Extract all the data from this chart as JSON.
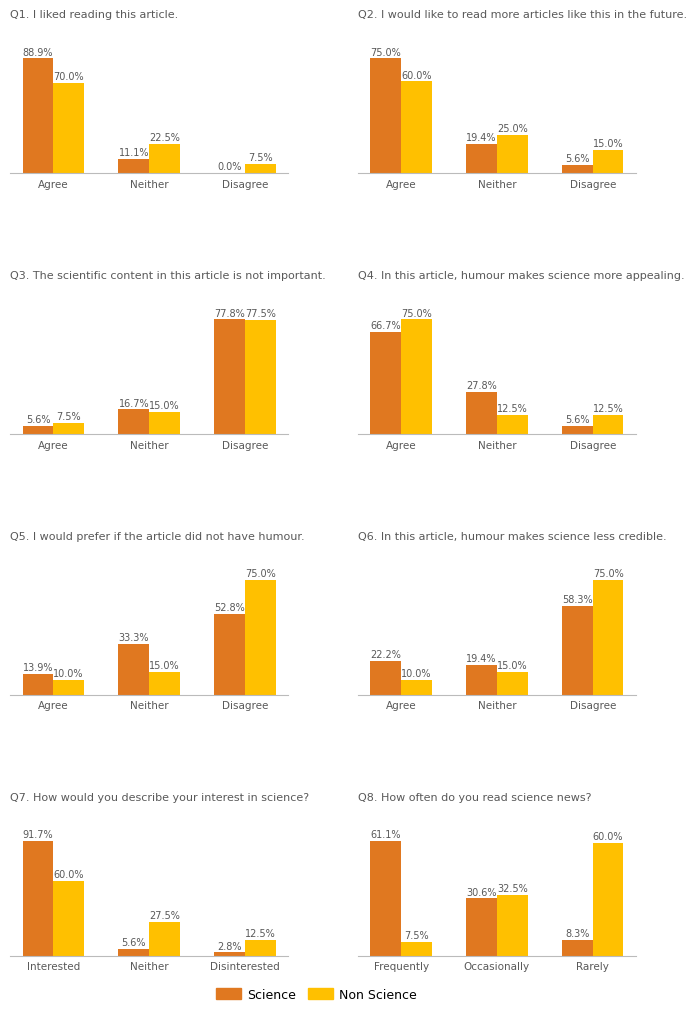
{
  "questions": [
    {
      "title": "Q1. I liked reading this article.",
      "categories": [
        "Agree",
        "Neither",
        "Disagree"
      ],
      "science": [
        88.9,
        11.1,
        0.0
      ],
      "nonscience": [
        70.0,
        22.5,
        7.5
      ]
    },
    {
      "title": "Q2. I would like to read more articles like this in the future.",
      "categories": [
        "Agree",
        "Neither",
        "Disagree"
      ],
      "science": [
        75.0,
        19.4,
        5.6
      ],
      "nonscience": [
        60.0,
        25.0,
        15.0
      ]
    },
    {
      "title": "Q3. The scientific content in this article is not important.",
      "categories": [
        "Agree",
        "Neither",
        "Disagree"
      ],
      "science": [
        5.6,
        16.7,
        77.8
      ],
      "nonscience": [
        7.5,
        15.0,
        77.5
      ]
    },
    {
      "title": "Q4. In this article, humour makes science more appealing.",
      "categories": [
        "Agree",
        "Neither",
        "Disagree"
      ],
      "science": [
        66.7,
        27.8,
        5.6
      ],
      "nonscience": [
        75.0,
        12.5,
        12.5
      ]
    },
    {
      "title": "Q5. I would prefer if the article did not have humour.",
      "categories": [
        "Agree",
        "Neither",
        "Disagree"
      ],
      "science": [
        13.9,
        33.3,
        52.8
      ],
      "nonscience": [
        10.0,
        15.0,
        75.0
      ]
    },
    {
      "title": "Q6. In this article, humour makes science less credible.",
      "categories": [
        "Agree",
        "Neither",
        "Disagree"
      ],
      "science": [
        22.2,
        19.4,
        58.3
      ],
      "nonscience": [
        10.0,
        15.0,
        75.0
      ]
    },
    {
      "title": "Q7. How would you describe your interest in science?",
      "categories": [
        "Interested",
        "Neither",
        "Disinterested"
      ],
      "science": [
        91.7,
        5.6,
        2.8
      ],
      "nonscience": [
        60.0,
        27.5,
        12.5
      ]
    },
    {
      "title": "Q8. How often do you read science news?",
      "categories": [
        "Frequently",
        "Occasionally",
        "Rarely"
      ],
      "science": [
        61.1,
        30.6,
        8.3
      ],
      "nonscience": [
        7.5,
        32.5,
        60.0
      ]
    }
  ],
  "science_color": "#E07820",
  "nonscience_color": "#FFC000",
  "bar_width": 0.32,
  "background_color": "#ffffff",
  "text_color": "#595959",
  "title_fontsize": 8.0,
  "tick_fontsize": 7.5,
  "annot_fontsize": 7.0,
  "legend_labels": [
    "Science",
    "Non Science"
  ]
}
